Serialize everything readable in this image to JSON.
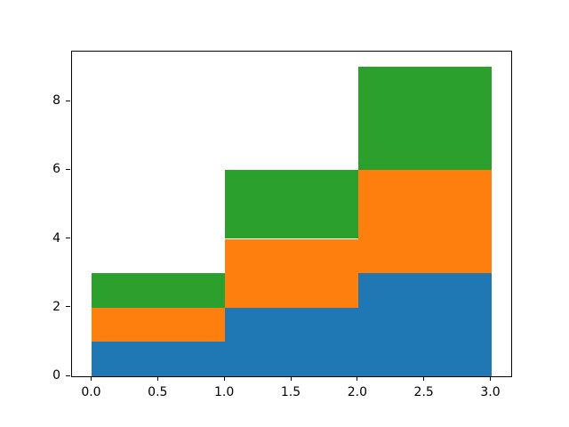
{
  "chart_data": {
    "type": "area",
    "subtype": "stacked-step-histogram",
    "title": "",
    "xlabel": "",
    "ylabel": "",
    "bins": [
      0,
      1,
      2,
      3
    ],
    "series": [
      {
        "name": "blue-series",
        "color": "#1f77b4",
        "values": [
          1,
          2,
          3
        ]
      },
      {
        "name": "orange-series",
        "color": "#ff7f0e",
        "values": [
          1,
          2,
          3
        ]
      },
      {
        "name": "green-series",
        "color": "#2ca02c",
        "values": [
          1,
          2,
          3
        ]
      }
    ],
    "stacked": true,
    "cumulative_tops": [
      [
        1,
        2,
        3
      ],
      [
        2,
        4,
        6
      ],
      [
        3,
        6,
        9
      ]
    ],
    "xlim": [
      -0.15,
      3.15
    ],
    "ylim": [
      0,
      9.45
    ],
    "xticks": {
      "values": [
        0,
        0.5,
        1,
        1.5,
        2,
        2.5,
        3
      ],
      "labels": [
        "0.0",
        "0.5",
        "1.0",
        "1.5",
        "2.0",
        "2.5",
        "3.0"
      ]
    },
    "yticks": {
      "values": [
        0,
        2,
        4,
        6,
        8
      ],
      "labels": [
        "0",
        "2",
        "4",
        "6",
        "8"
      ]
    },
    "grid": false,
    "legend": null,
    "spine_color": "#000000",
    "background_color": "#ffffff"
  }
}
